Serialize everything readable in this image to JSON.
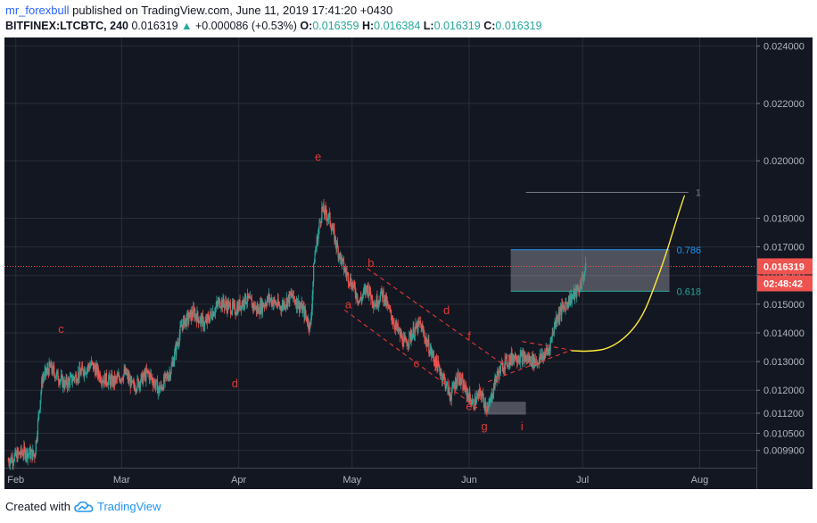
{
  "header": {
    "author": "mr_forexbull",
    "published_text": "published on TradingView.com, June 11, 2019 17:41:20 +0430",
    "symbol": "BITFINEX:LTCBTC, 240",
    "last": "0.016319",
    "change_arrow": "▲",
    "change": "+0.000086 (+0.53%)",
    "o_label": "O:",
    "o_value": "0.016359",
    "h_label": "H:",
    "h_value": "0.016384",
    "l_label": "L:",
    "l_value": "0.016319",
    "c_label": "C:",
    "c_value": "0.016319"
  },
  "footer": {
    "created_with": "Created with",
    "brand": "TradingView",
    "logo_icon": "tradingview-cloud-icon"
  },
  "colors": {
    "background": "#131722",
    "grid": "#2a2e39",
    "up": "#26a69a",
    "down": "#ef5350",
    "annotation": "#e53935",
    "fib_786": "#2196f3",
    "fib_618": "#26a69a",
    "projection": "#ffeb3b",
    "price_tag": "#ef5350"
  },
  "chart_data": {
    "type": "candlestick",
    "ylim": [
      0.0093,
      0.0243
    ],
    "y_ticks": [
      "0.024000",
      "0.022000",
      "0.020000",
      "0.018000",
      "0.017000",
      "0.016000",
      "0.015000",
      "0.014000",
      "0.013000",
      "0.012000",
      "0.011200",
      "0.010500",
      "0.009900"
    ],
    "x_ticks": [
      "Feb",
      "Mar",
      "Apr",
      "May",
      "Jun",
      "Jul",
      "Aug"
    ],
    "x_tick_dates": [
      "2019-02-01",
      "2019-03-01",
      "2019-04-01",
      "2019-05-01",
      "2019-06-01",
      "2019-07-01",
      "2019-08-01"
    ],
    "x_range": [
      "2019-01-29",
      "2019-08-16"
    ],
    "price_path": [
      [
        "2019-01-30",
        0.00955
      ],
      [
        "2019-02-03",
        0.00985
      ],
      [
        "2019-02-06",
        0.00975
      ],
      [
        "2019-02-08",
        0.0124
      ],
      [
        "2019-02-10",
        0.0128
      ],
      [
        "2019-02-14",
        0.0122
      ],
      [
        "2019-02-18",
        0.0126
      ],
      [
        "2019-02-21",
        0.0129
      ],
      [
        "2019-02-24",
        0.0124
      ],
      [
        "2019-02-27",
        0.0123
      ],
      [
        "2019-03-02",
        0.0126
      ],
      [
        "2019-03-04",
        0.0121
      ],
      [
        "2019-03-08",
        0.0126
      ],
      [
        "2019-03-11",
        0.012
      ],
      [
        "2019-03-14",
        0.0127
      ],
      [
        "2019-03-17",
        0.0143
      ],
      [
        "2019-03-20",
        0.0147
      ],
      [
        "2019-03-23",
        0.0143
      ],
      [
        "2019-03-27",
        0.0151
      ],
      [
        "2019-03-31",
        0.0148
      ],
      [
        "2019-04-03",
        0.0152
      ],
      [
        "2019-04-06",
        0.0148
      ],
      [
        "2019-04-09",
        0.0152
      ],
      [
        "2019-04-12",
        0.0149
      ],
      [
        "2019-04-15",
        0.0153
      ],
      [
        "2019-04-18",
        0.0148
      ],
      [
        "2019-04-20",
        0.0142
      ],
      [
        "2019-04-21",
        0.0166
      ],
      [
        "2019-04-23",
        0.0183
      ],
      [
        "2019-04-25",
        0.018
      ],
      [
        "2019-04-27",
        0.017
      ],
      [
        "2019-04-29",
        0.0162
      ],
      [
        "2019-05-01",
        0.0157
      ],
      [
        "2019-05-03",
        0.0151
      ],
      [
        "2019-05-05",
        0.0156
      ],
      [
        "2019-05-07",
        0.015
      ],
      [
        "2019-05-09",
        0.0154
      ],
      [
        "2019-05-11",
        0.0147
      ],
      [
        "2019-05-13",
        0.0141
      ],
      [
        "2019-05-15",
        0.0136
      ],
      [
        "2019-05-17",
        0.014
      ],
      [
        "2019-05-19",
        0.0143
      ],
      [
        "2019-05-21",
        0.0136
      ],
      [
        "2019-05-23",
        0.013
      ],
      [
        "2019-05-25",
        0.0125
      ],
      [
        "2019-05-27",
        0.0118
      ],
      [
        "2019-05-29",
        0.0125
      ],
      [
        "2019-05-31",
        0.012
      ],
      [
        "2019-06-02",
        0.0115
      ],
      [
        "2019-06-04",
        0.0119
      ],
      [
        "2019-06-06",
        0.0113
      ],
      [
        "2019-06-08",
        0.0124
      ],
      [
        "2019-06-10",
        0.0129
      ],
      [
        "2019-06-13",
        0.0132
      ],
      [
        "2019-06-16",
        0.0131
      ],
      [
        "2019-06-19",
        0.013
      ],
      [
        "2019-06-22",
        0.0134
      ],
      [
        "2019-06-24",
        0.0145
      ],
      [
        "2019-06-27",
        0.0151
      ],
      [
        "2019-06-30",
        0.0155
      ],
      [
        "2019-07-02",
        0.0163
      ]
    ],
    "last_price": 0.016319,
    "last_price_label": "0.016319",
    "countdown_label": "02:48:42",
    "fib_levels": [
      {
        "label": "1",
        "value": 0.0189,
        "x_start": "2019-06-16",
        "x_end": "2019-07-29"
      },
      {
        "label": "0.786",
        "value": 0.0169,
        "x_start": "2019-06-12",
        "x_end": "2019-07-24"
      },
      {
        "label": "0.618",
        "value": 0.01545,
        "x_start": "2019-06-12",
        "x_end": "2019-07-24"
      }
    ],
    "rect_zones": [
      {
        "name": "fib-zone",
        "x1": "2019-06-12",
        "x2": "2019-07-24",
        "y1": 0.0169,
        "y2": 0.01545
      },
      {
        "name": "bottom-zone",
        "x1": "2019-06-05",
        "x2": "2019-06-16",
        "y1": 0.0116,
        "y2": 0.01115
      }
    ],
    "wave_labels": [
      {
        "text": "c",
        "date": "2019-02-13",
        "value": 0.014
      },
      {
        "text": "d",
        "date": "2019-03-31",
        "value": 0.0121
      },
      {
        "text": "e",
        "date": "2019-04-22",
        "value": 0.02
      },
      {
        "text": "a",
        "date": "2019-04-30",
        "value": 0.01485
      },
      {
        "text": "b",
        "date": "2019-05-06",
        "value": 0.0163
      },
      {
        "text": "c",
        "date": "2019-05-18",
        "value": 0.0128
      },
      {
        "text": "d",
        "date": "2019-05-26",
        "value": 0.01465
      },
      {
        "text": "e",
        "date": "2019-06-01",
        "value": 0.0113
      },
      {
        "text": "f",
        "date": "2019-06-01",
        "value": 0.01375
      },
      {
        "text": "g",
        "date": "2019-06-05",
        "value": 0.0106
      },
      {
        "text": "h",
        "date": "2019-06-11",
        "value": 0.013
      },
      {
        "text": "i",
        "date": "2019-06-15",
        "value": 0.0106
      }
    ],
    "channel_lines": [
      [
        [
          "2019-04-29",
          0.0148
        ],
        [
          "2019-06-04",
          0.0113
        ]
      ],
      [
        [
          "2019-05-05",
          0.01625
        ],
        [
          "2019-06-10",
          0.0129
        ]
      ],
      [
        [
          "2019-06-06",
          0.0123
        ],
        [
          "2019-06-28",
          0.0134
        ]
      ],
      [
        [
          "2019-06-15",
          0.0137
        ],
        [
          "2019-06-28",
          0.0134
        ]
      ]
    ],
    "projection_curve": [
      [
        "2019-06-28",
        0.01338
      ],
      [
        "2019-07-03",
        0.01335
      ],
      [
        "2019-07-08",
        0.01345
      ],
      [
        "2019-07-13",
        0.0139
      ],
      [
        "2019-07-17",
        0.0146
      ],
      [
        "2019-07-20",
        0.0156
      ],
      [
        "2019-07-23",
        0.0167
      ],
      [
        "2019-07-26",
        0.018
      ],
      [
        "2019-07-28",
        0.0188
      ]
    ]
  }
}
